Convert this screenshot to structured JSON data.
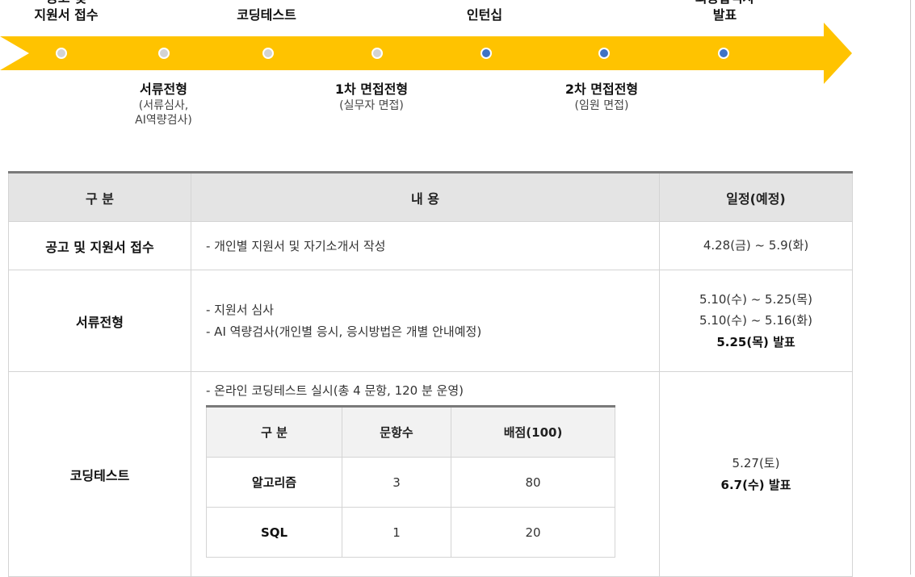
{
  "timeline": {
    "top_labels": [
      {
        "lines": [
          "공고 및",
          "지원서 접수"
        ]
      },
      {
        "lines": [
          "코딩테스트"
        ]
      },
      {
        "lines": [
          "인턴십"
        ]
      },
      {
        "lines": [
          "최종합격자",
          "발표"
        ]
      }
    ],
    "bottom_labels": [
      {
        "title": "서류전형",
        "subs": [
          "(서류심사,",
          "AI역량검사)"
        ]
      },
      {
        "title": "1차 면접전형",
        "subs": [
          "(실무자 면접)"
        ]
      },
      {
        "title": "2차 면접전형",
        "subs": [
          "(임원 면접)"
        ]
      }
    ],
    "dots": [
      {
        "state": "done"
      },
      {
        "state": "done"
      },
      {
        "state": "done"
      },
      {
        "state": "done"
      },
      {
        "state": "upcoming"
      },
      {
        "state": "upcoming"
      },
      {
        "state": "upcoming"
      }
    ],
    "colors": {
      "arrow": "#FFC300",
      "done_dot": "#d3d3d3",
      "upcoming_dot": "#3f73c4"
    }
  },
  "table": {
    "headers": [
      "구 분",
      "내 용",
      "일정(예정)"
    ],
    "rows": [
      {
        "category": "공고 및 지원서 접수",
        "content": [
          "- 개인별 지원서 및 자기소개서 작성"
        ],
        "schedule": [
          "4.28(금) ~ 5.9(화)"
        ],
        "schedule_bold": ""
      },
      {
        "category": "서류전형",
        "content": [
          "- 지원서 심사",
          "- AI 역량검사(개인별 응시, 응시방법은 개별 안내예정)"
        ],
        "schedule": [
          "5.10(수) ~ 5.25(목)",
          "5.10(수) ~ 5.16(화)"
        ],
        "schedule_bold": "5.25(목) 발표"
      },
      {
        "category": "코딩테스트",
        "content": [
          "- 온라인 코딩테스트 실시(총 4 문항, 120 분 운영)"
        ],
        "schedule": [
          "5.27(토)"
        ],
        "schedule_bold": "6.7(수) 발표",
        "sub_table": {
          "headers": [
            "구 분",
            "문항수",
            "배점(100)"
          ],
          "rows": [
            [
              "알고리즘",
              "3",
              "80"
            ],
            [
              "SQL",
              "1",
              "20"
            ]
          ]
        }
      }
    ]
  }
}
